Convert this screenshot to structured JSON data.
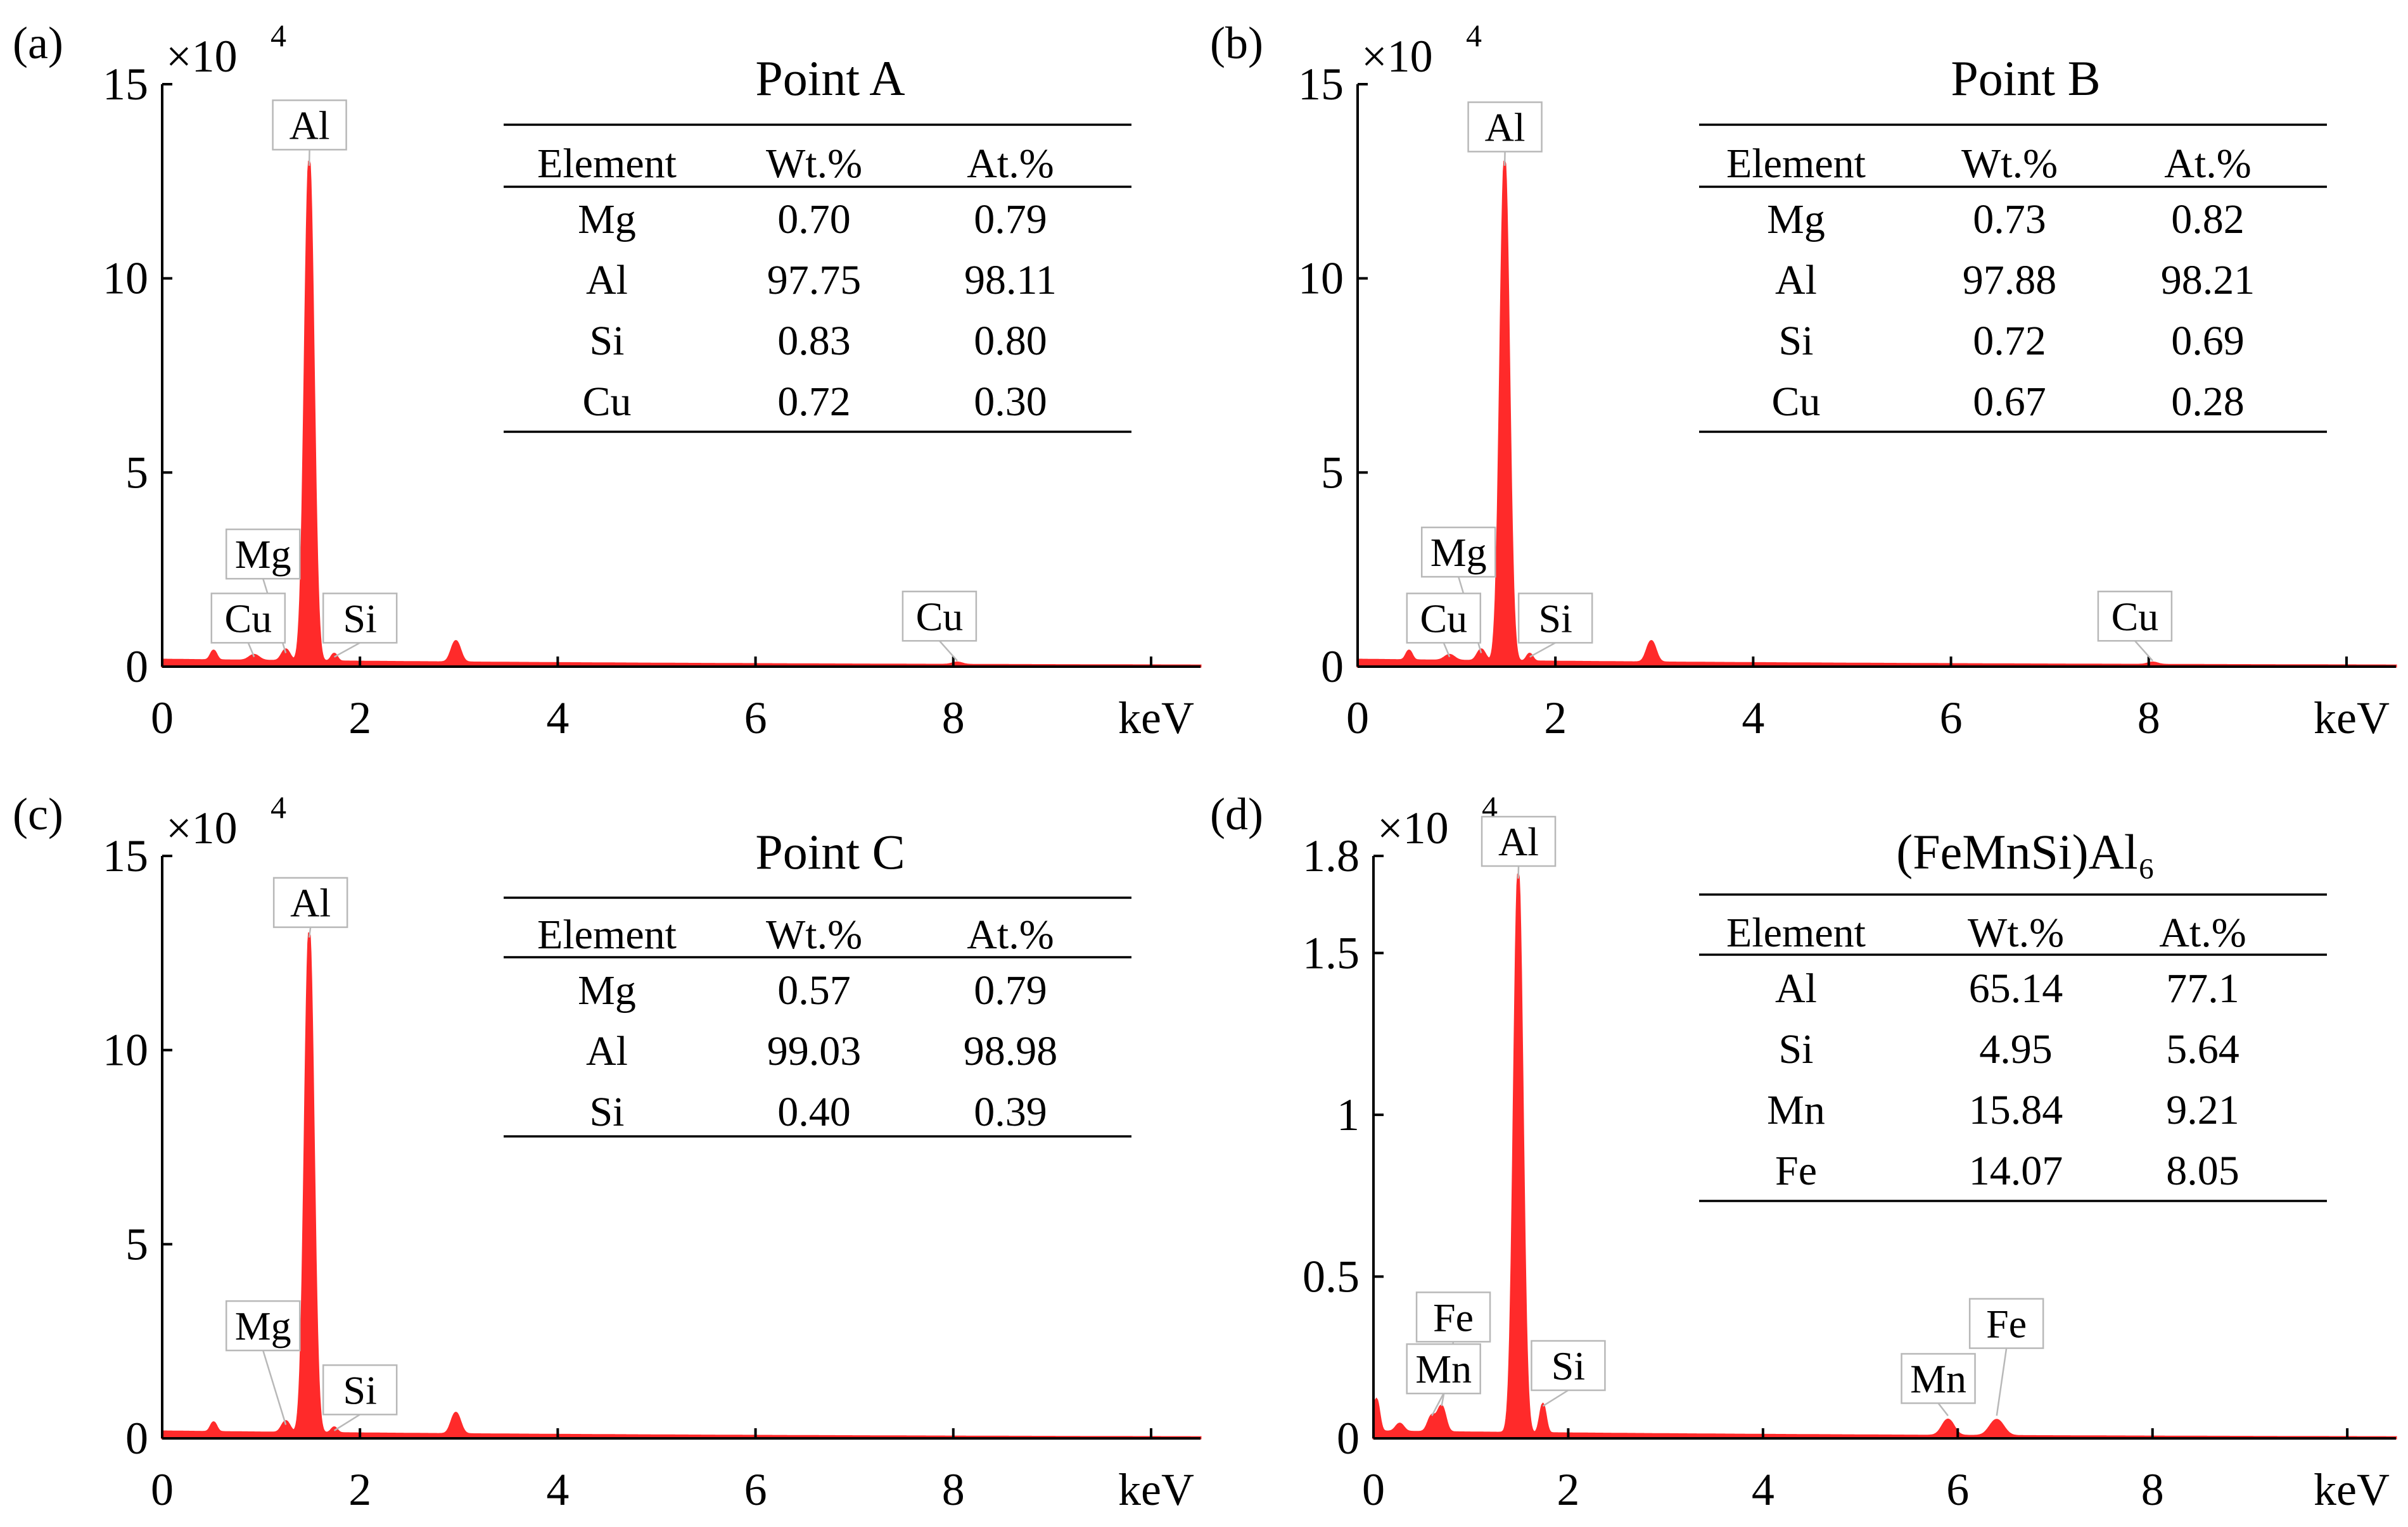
{
  "chart_data": [
    {
      "type": "area",
      "panel_label": "(a)",
      "multiplier": "×10",
      "multiplier_exp": "4",
      "xlabel": "keV",
      "xlim": [
        0,
        10.5
      ],
      "ylim": [
        0,
        15
      ],
      "xticks": [
        0,
        2,
        4,
        6,
        8
      ],
      "yticks": [
        0,
        5,
        10,
        15
      ],
      "xtick_labels": [
        "0",
        "2",
        "4",
        "6",
        "8"
      ],
      "ytick_labels": [
        "0",
        "5",
        "10",
        "15"
      ],
      "color": "#ff2a2a",
      "peaks": [
        {
          "x": 0.52,
          "y": 0.25,
          "w": 0.03
        },
        {
          "x": 0.93,
          "y": 0.15,
          "w": 0.05
        },
        {
          "x": 1.25,
          "y": 0.3,
          "w": 0.04
        },
        {
          "x": 1.487,
          "y": 12.9,
          "w": 0.045
        },
        {
          "x": 1.74,
          "y": 0.2,
          "w": 0.03
        },
        {
          "x": 2.97,
          "y": 0.55,
          "w": 0.045
        },
        {
          "x": 8.04,
          "y": 0.06,
          "w": 0.05
        }
      ],
      "peak_labels": [
        {
          "text": "Al",
          "x": 1.487,
          "y": 12.9,
          "lx": 1.49,
          "ly": 13.95
        },
        {
          "text": "Mg",
          "x": 1.25,
          "y": 0.35,
          "lx": 1.02,
          "ly": 2.9
        },
        {
          "text": "Cu",
          "x": 0.93,
          "y": 0.25,
          "lx": 0.87,
          "ly": 1.25
        },
        {
          "text": "Si",
          "x": 1.74,
          "y": 0.25,
          "lx": 2.0,
          "ly": 1.25
        },
        {
          "text": "Cu",
          "x": 8.04,
          "y": 0.15,
          "lx": 7.86,
          "ly": 1.3
        }
      ],
      "table": {
        "title": "Point A",
        "columns": [
          "Element",
          "Wt.%",
          "At.%"
        ],
        "rows": [
          [
            "Mg",
            "0.70",
            "0.79"
          ],
          [
            "Al",
            "97.75",
            "98.11"
          ],
          [
            "Si",
            "0.83",
            "0.80"
          ],
          [
            "Cu",
            "0.72",
            "0.30"
          ]
        ]
      }
    },
    {
      "type": "area",
      "panel_label": "(b)",
      "multiplier": "×10",
      "multiplier_exp": "4",
      "xlabel": "keV",
      "xlim": [
        0,
        10.5
      ],
      "ylim": [
        0,
        15
      ],
      "xticks": [
        0,
        2,
        4,
        6,
        8
      ],
      "yticks": [
        0,
        5,
        10,
        15
      ],
      "xtick_labels": [
        "0",
        "2",
        "4",
        "6",
        "8"
      ],
      "ytick_labels": [
        "0",
        "5",
        "10",
        "15"
      ],
      "color": "#ff2a2a",
      "peaks": [
        {
          "x": 0.52,
          "y": 0.25,
          "w": 0.03
        },
        {
          "x": 0.93,
          "y": 0.15,
          "w": 0.05
        },
        {
          "x": 1.25,
          "y": 0.3,
          "w": 0.04
        },
        {
          "x": 1.487,
          "y": 12.9,
          "w": 0.045
        },
        {
          "x": 1.74,
          "y": 0.2,
          "w": 0.03
        },
        {
          "x": 2.97,
          "y": 0.55,
          "w": 0.045
        },
        {
          "x": 8.04,
          "y": 0.06,
          "w": 0.05
        }
      ],
      "peak_labels": [
        {
          "text": "Al",
          "x": 1.487,
          "y": 12.9,
          "lx": 1.49,
          "ly": 13.9
        },
        {
          "text": "Mg",
          "x": 1.25,
          "y": 0.35,
          "lx": 1.02,
          "ly": 2.95
        },
        {
          "text": "Cu",
          "x": 0.93,
          "y": 0.25,
          "lx": 0.87,
          "ly": 1.25
        },
        {
          "text": "Si",
          "x": 1.74,
          "y": 0.25,
          "lx": 2.0,
          "ly": 1.25
        },
        {
          "text": "Cu",
          "x": 8.04,
          "y": 0.15,
          "lx": 7.86,
          "ly": 1.3
        }
      ],
      "table": {
        "title": "Point B",
        "columns": [
          "Element",
          "Wt.%",
          "At.%"
        ],
        "rows": [
          [
            "Mg",
            "0.73",
            "0.82"
          ],
          [
            "Al",
            "97.88",
            "98.21"
          ],
          [
            "Si",
            "0.72",
            "0.69"
          ],
          [
            "Cu",
            "0.67",
            "0.28"
          ]
        ]
      }
    },
    {
      "type": "area",
      "panel_label": "(c)",
      "multiplier": "×10",
      "multiplier_exp": "4",
      "xlabel": "keV",
      "xlim": [
        0,
        10.5
      ],
      "ylim": [
        0,
        15
      ],
      "xticks": [
        0,
        2,
        4,
        6,
        8
      ],
      "yticks": [
        0,
        5,
        10,
        15
      ],
      "xtick_labels": [
        "0",
        "2",
        "4",
        "6",
        "8"
      ],
      "ytick_labels": [
        "0",
        "5",
        "10",
        "15"
      ],
      "color": "#ff2a2a",
      "peaks": [
        {
          "x": 0.52,
          "y": 0.25,
          "w": 0.03
        },
        {
          "x": 1.25,
          "y": 0.3,
          "w": 0.04
        },
        {
          "x": 1.487,
          "y": 12.9,
          "w": 0.045
        },
        {
          "x": 1.74,
          "y": 0.15,
          "w": 0.03
        },
        {
          "x": 2.97,
          "y": 0.55,
          "w": 0.045
        }
      ],
      "peak_labels": [
        {
          "text": "Al",
          "x": 1.487,
          "y": 12.9,
          "lx": 1.5,
          "ly": 13.8
        },
        {
          "text": "Mg",
          "x": 1.25,
          "y": 0.35,
          "lx": 1.02,
          "ly": 2.9
        },
        {
          "text": "Si",
          "x": 1.74,
          "y": 0.2,
          "lx": 2.0,
          "ly": 1.25
        }
      ],
      "table": {
        "title": "Point C",
        "columns": [
          "Element",
          "Wt.%",
          "At.%"
        ],
        "rows": [
          [
            "Mg",
            "0.57",
            "0.79"
          ],
          [
            "Al",
            "99.03",
            "98.98"
          ],
          [
            "Si",
            "0.40",
            "0.39"
          ]
        ]
      }
    },
    {
      "type": "area",
      "panel_label": "(d)",
      "multiplier": "×10",
      "multiplier_exp": "4",
      "xlabel": "keV",
      "xlim": [
        0,
        10.5
      ],
      "ylim": [
        0,
        1.8
      ],
      "xticks": [
        0,
        2,
        4,
        6,
        8
      ],
      "yticks": [
        0,
        0.5,
        1,
        1.5,
        1.8
      ],
      "xtick_labels": [
        "0",
        "2",
        "4",
        "6",
        "8"
      ],
      "ytick_labels": [
        "0",
        "0.5",
        "1",
        "1.5",
        "1.8"
      ],
      "color": "#ff2a2a",
      "peaks": [
        {
          "x": 0.03,
          "y": 0.1,
          "w": 0.03
        },
        {
          "x": 0.27,
          "y": 0.025,
          "w": 0.04
        },
        {
          "x": 0.6,
          "y": 0.05,
          "w": 0.04
        },
        {
          "x": 0.7,
          "y": 0.08,
          "w": 0.04
        },
        {
          "x": 1.487,
          "y": 1.73,
          "w": 0.045
        },
        {
          "x": 1.74,
          "y": 0.09,
          "w": 0.03
        },
        {
          "x": 5.9,
          "y": 0.05,
          "w": 0.06
        },
        {
          "x": 6.4,
          "y": 0.05,
          "w": 0.07
        }
      ],
      "peak_labels": [
        {
          "text": "Al",
          "x": 1.487,
          "y": 1.73,
          "lx": 1.49,
          "ly": 1.845
        },
        {
          "text": "Fe",
          "x": 0.7,
          "y": 0.1,
          "lx": 0.82,
          "ly": 0.375
        },
        {
          "text": "Mn",
          "x": 0.6,
          "y": 0.07,
          "lx": 0.72,
          "ly": 0.215
        },
        {
          "text": "Si",
          "x": 1.74,
          "y": 0.1,
          "lx": 2.0,
          "ly": 0.225
        },
        {
          "text": "Mn",
          "x": 5.9,
          "y": 0.07,
          "lx": 5.8,
          "ly": 0.185
        },
        {
          "text": "Fe",
          "x": 6.4,
          "y": 0.07,
          "lx": 6.5,
          "ly": 0.355
        }
      ],
      "table": {
        "title": "(FeMnSi)Al₆",
        "columns": [
          "Element",
          "Wt.%",
          "At.%"
        ],
        "rows": [
          [
            "Al",
            "65.14",
            "77.1"
          ],
          [
            "Si",
            "4.95",
            "5.64"
          ],
          [
            "Mn",
            "15.84",
            "9.21"
          ],
          [
            "Fe",
            "14.07",
            "8.05"
          ]
        ]
      }
    }
  ]
}
